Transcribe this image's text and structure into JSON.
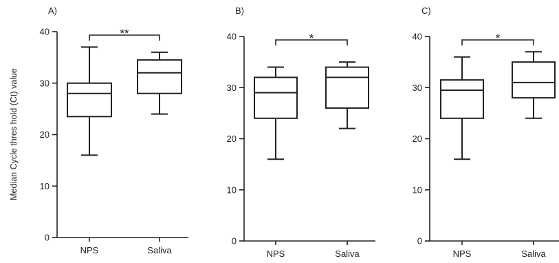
{
  "chart_data": [
    {
      "type": "boxplot",
      "panel_label": "A)",
      "ylabel": "Median Cycle thres hold (Ct) value",
      "ylim": [
        0,
        40
      ],
      "yticks": [
        "0",
        "10",
        "20",
        "30",
        "40"
      ],
      "categories": [
        "NPS",
        "Saliva"
      ],
      "boxes": [
        {
          "min": 16,
          "q1": 23.5,
          "median": 28,
          "q3": 30,
          "max": 37
        },
        {
          "min": 24,
          "q1": 28,
          "median": 32,
          "q3": 34.5,
          "max": 36
        }
      ],
      "significance": "**"
    },
    {
      "type": "boxplot",
      "panel_label": "B)",
      "ylabel": "",
      "ylim": [
        0,
        40
      ],
      "yticks": [
        "0",
        "10",
        "20",
        "30",
        "40"
      ],
      "categories": [
        "NPS",
        "Saliva"
      ],
      "boxes": [
        {
          "min": 16,
          "q1": 24,
          "median": 29,
          "q3": 32,
          "max": 34
        },
        {
          "min": 22,
          "q1": 26,
          "median": 32,
          "q3": 34,
          "max": 35
        }
      ],
      "significance": "*"
    },
    {
      "type": "boxplot",
      "panel_label": "C)",
      "ylabel": "",
      "ylim": [
        0,
        40
      ],
      "yticks": [
        "0",
        "10",
        "20",
        "30",
        "40"
      ],
      "categories": [
        "NPS",
        "Saliva"
      ],
      "boxes": [
        {
          "min": 16,
          "q1": 24,
          "median": 29.5,
          "q3": 31.5,
          "max": 36
        },
        {
          "min": 24,
          "q1": 28,
          "median": 31,
          "q3": 35,
          "max": 37
        }
      ],
      "significance": "*"
    }
  ]
}
